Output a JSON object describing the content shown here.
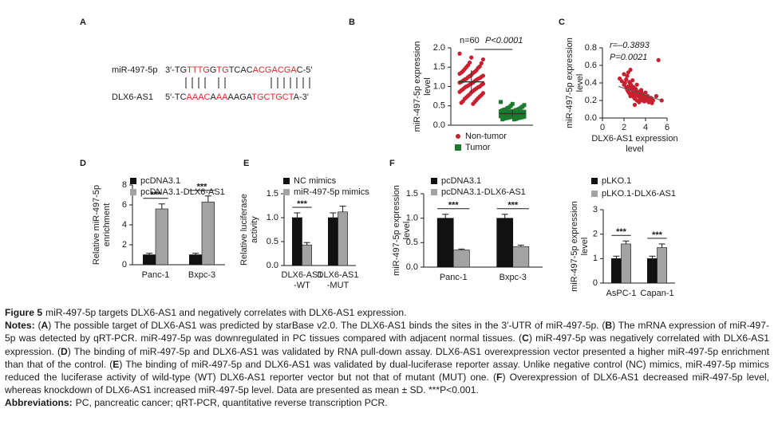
{
  "alignment": {
    "panel": "A",
    "rows": [
      {
        "label": "miR-497-5p",
        "segments": [
          {
            "text": "3′-TG",
            "color": "#222222"
          },
          {
            "text": "TTTG",
            "color": "#e0262b"
          },
          {
            "text": "G",
            "color": "#222222"
          },
          {
            "text": "TG",
            "color": "#e0262b"
          },
          {
            "text": "TCAC",
            "color": "#222222"
          },
          {
            "text": "ACGACGA",
            "color": "#e0262b"
          },
          {
            "text": "C-5′",
            "color": "#222222"
          }
        ]
      },
      {
        "label": "DLX6-AS1",
        "segments": [
          {
            "text": "5′-TC",
            "color": "#222222"
          },
          {
            "text": "AAAC",
            "color": "#e0262b"
          },
          {
            "text": "A",
            "color": "#222222"
          },
          {
            "text": "AA",
            "color": "#e0262b"
          },
          {
            "text": "AAGA",
            "color": "#222222"
          },
          {
            "text": "TGCTGCT",
            "color": "#e0262b"
          },
          {
            "text": "A-3′",
            "color": "#222222"
          }
        ]
      }
    ]
  },
  "chart_data": [
    {
      "type": "strip",
      "panel": "B",
      "ylabel": [
        "miR-497-5p expression",
        "level"
      ],
      "annotations": [
        "n=60",
        "P<0.0001"
      ],
      "ylim": [
        0,
        2
      ],
      "yticks": [
        {
          "value": 0,
          "label": "0.0"
        },
        0.5,
        {
          "value": 1,
          "label": "1.0"
        },
        1.5,
        {
          "value": 2,
          "label": "2.0"
        }
      ],
      "series": [
        {
          "name": "Non-tumor",
          "color": "#c8202e",
          "marker": "circle",
          "mean": 1.12,
          "sd": 0.3,
          "values": [
            1.85,
            1.75,
            1.7,
            1.62,
            1.6,
            1.55,
            1.52,
            1.5,
            1.48,
            1.45,
            1.42,
            1.4,
            1.38,
            1.36,
            1.35,
            1.33,
            1.3,
            1.28,
            1.27,
            1.25,
            1.24,
            1.22,
            1.2,
            1.2,
            1.18,
            1.17,
            1.15,
            1.14,
            1.12,
            1.1,
            1.1,
            1.08,
            1.07,
            1.05,
            1.04,
            1.02,
            1.0,
            1.0,
            0.98,
            0.97,
            0.95,
            0.93,
            0.92,
            0.9,
            0.88,
            0.86,
            0.85,
            0.83,
            0.8,
            0.78,
            0.76,
            0.74,
            0.72,
            0.7,
            0.68,
            0.65,
            0.62,
            0.6,
            0.58,
            0.55
          ]
        },
        {
          "name": "Tumor",
          "color": "#1a7a2e",
          "marker": "square",
          "mean": 0.3,
          "sd": 0.1,
          "values": [
            0.6,
            0.55,
            0.52,
            0.5,
            0.48,
            0.46,
            0.45,
            0.44,
            0.42,
            0.41,
            0.4,
            0.4,
            0.39,
            0.38,
            0.37,
            0.36,
            0.36,
            0.35,
            0.35,
            0.34,
            0.34,
            0.33,
            0.33,
            0.32,
            0.32,
            0.31,
            0.31,
            0.3,
            0.3,
            0.3,
            0.29,
            0.29,
            0.28,
            0.28,
            0.28,
            0.27,
            0.27,
            0.26,
            0.26,
            0.25,
            0.25,
            0.25,
            0.24,
            0.24,
            0.23,
            0.23,
            0.22,
            0.22,
            0.21,
            0.21,
            0.2,
            0.2,
            0.19,
            0.19,
            0.18,
            0.18,
            0.17,
            0.16,
            0.15,
            0.15
          ]
        }
      ]
    },
    {
      "type": "scatter",
      "panel": "C",
      "ylabel": [
        "miR-497-5p expression",
        "level"
      ],
      "xlabel": [
        "DLX6-AS1 expression",
        "level"
      ],
      "annotations": [
        "r=–0.3893",
        "P=0.0021"
      ],
      "xlim": [
        0,
        6
      ],
      "xticks": [
        0,
        2,
        4,
        6
      ],
      "ylim": [
        0,
        0.8
      ],
      "yticks": [
        {
          "value": 0,
          "label": "0.0"
        },
        0.2,
        0.4,
        0.6,
        0.8
      ],
      "color": "#c8202e",
      "x": [
        1.6,
        1.8,
        2.0,
        2.0,
        2.1,
        2.2,
        2.2,
        2.3,
        2.3,
        2.4,
        2.4,
        2.5,
        2.5,
        2.5,
        2.6,
        2.6,
        2.7,
        2.7,
        2.8,
        2.8,
        2.9,
        2.9,
        3.0,
        3.0,
        3.0,
        3.1,
        3.1,
        3.2,
        3.2,
        3.3,
        3.3,
        3.4,
        3.4,
        3.5,
        3.5,
        3.6,
        3.6,
        3.7,
        3.8,
        3.8,
        3.9,
        4.0,
        4.0,
        4.1,
        4.2,
        4.3,
        4.4,
        4.5,
        4.6,
        4.7,
        2.4,
        2.8,
        3.2,
        3.6,
        4.0,
        5.0,
        5.2,
        5.5,
        2.6,
        3.0
      ],
      "y": [
        0.45,
        0.42,
        0.5,
        0.38,
        0.4,
        0.35,
        0.44,
        0.32,
        0.48,
        0.36,
        0.3,
        0.41,
        0.28,
        0.34,
        0.39,
        0.25,
        0.33,
        0.37,
        0.27,
        0.3,
        0.35,
        0.24,
        0.31,
        0.28,
        0.22,
        0.33,
        0.26,
        0.29,
        0.2,
        0.3,
        0.25,
        0.27,
        0.18,
        0.28,
        0.22,
        0.25,
        0.3,
        0.2,
        0.23,
        0.27,
        0.19,
        0.24,
        0.2,
        0.22,
        0.25,
        0.18,
        0.21,
        0.23,
        0.17,
        0.2,
        0.52,
        0.43,
        0.38,
        0.32,
        0.29,
        0.25,
        0.66,
        0.2,
        0.55,
        0.15
      ],
      "fit": {
        "x": [
          1.5,
          5.5
        ],
        "y": [
          0.36,
          0.2
        ]
      }
    },
    {
      "type": "bar",
      "panel": "D",
      "ylabel": [
        "Relative miR-497-5p",
        "enrichment"
      ],
      "categories": [
        "Panc-1",
        "Bxpc-3"
      ],
      "significance": [
        "***",
        "***"
      ],
      "ylim": [
        0,
        8
      ],
      "yticks": [
        0,
        2,
        4,
        6,
        8
      ],
      "series": [
        {
          "name": "pcDNA3.1",
          "color": "#111111",
          "values": [
            1.0,
            1.0
          ],
          "errors": [
            0.15,
            0.15
          ]
        },
        {
          "name": "pcDNA3.1-DLX6-AS1",
          "color": "#a3a3a3",
          "values": [
            5.6,
            6.3
          ],
          "errors": [
            0.5,
            0.6
          ]
        }
      ]
    },
    {
      "type": "bar",
      "panel": "E",
      "ylabel": [
        "Relative luciferase",
        "activity"
      ],
      "categories": [
        [
          "DLX6-AS1",
          "-WT"
        ],
        [
          "DLX6-AS1",
          "-MUT"
        ]
      ],
      "significance": [
        "***",
        null
      ],
      "ylim": [
        0,
        1.5
      ],
      "yticks": [
        {
          "value": 0,
          "label": "0.0"
        },
        0.5,
        {
          "value": 1,
          "label": "1.0"
        },
        1.5
      ],
      "series": [
        {
          "name": "NC mimics",
          "color": "#111111",
          "values": [
            1.0,
            1.0
          ],
          "errors": [
            0.1,
            0.1
          ]
        },
        {
          "name": "miR-497-5p mimics",
          "color": "#a3a3a3",
          "values": [
            0.43,
            1.12
          ],
          "errors": [
            0.05,
            0.12
          ]
        }
      ]
    },
    {
      "type": "bar",
      "panel": "F",
      "ylabel": [
        "miR-497-5p expression",
        "level"
      ],
      "categories": [
        "Panc-1",
        "Bxpc-3"
      ],
      "significance": [
        "***",
        "***"
      ],
      "ylim": [
        0,
        1.5
      ],
      "yticks": [
        {
          "value": 0,
          "label": "0.0"
        },
        0.5,
        {
          "value": 1,
          "label": "1.0"
        },
        1.5
      ],
      "series": [
        {
          "name": "pcDNA3.1",
          "color": "#111111",
          "values": [
            1.0,
            1.0
          ],
          "errors": [
            0.08,
            0.08
          ]
        },
        {
          "name": "pcDNA3.1-DLX6-AS1",
          "color": "#a3a3a3",
          "values": [
            0.35,
            0.42
          ],
          "errors": [
            0.02,
            0.03
          ]
        }
      ]
    },
    {
      "type": "bar",
      "ylabel": [
        "miR-497-5p expression",
        "level"
      ],
      "categories": [
        "AsPC-1",
        "Capan-1"
      ],
      "significance": [
        "***",
        "***"
      ],
      "ylim": [
        0,
        3
      ],
      "yticks": [
        0,
        1,
        2,
        3
      ],
      "series": [
        {
          "name": "pLKO.1",
          "color": "#111111",
          "values": [
            1.0,
            1.0
          ],
          "errors": [
            0.1,
            0.1
          ]
        },
        {
          "name": "pLKO.1-DLX6-AS1",
          "color": "#a3a3a3",
          "values": [
            1.6,
            1.45
          ],
          "errors": [
            0.12,
            0.15
          ]
        }
      ]
    }
  ],
  "caption": {
    "title": "Figure 5",
    "text": "miR-497-5p targets DLX6-AS1 and negatively correlates with DLX6-AS1 expression.",
    "notes": [
      {
        "text": "Notes:",
        "bold": true
      },
      {
        "text": " (",
        "bold": false
      },
      {
        "text": "A",
        "bold": true
      },
      {
        "text": ") The possible target of DLX6-AS1 was predicted by starBase v2.0. The DLX6-AS1 binds the sites in the 3′-UTR of miR-497-5p. (",
        "bold": false
      },
      {
        "text": "B",
        "bold": true
      },
      {
        "text": ") The mRNA expression of miR-497-5p was detected by qRT-PCR. miR-497-5p was downregulated in PC tissues compared with adjacent normal tissues. (",
        "bold": false
      },
      {
        "text": "C",
        "bold": true
      },
      {
        "text": ") miR-497-5p was negatively correlated with DLX6-AS1 expression. (",
        "bold": false
      },
      {
        "text": "D",
        "bold": true
      },
      {
        "text": ") The binding of miR-497-5p and DLX6-AS1 was validated by RNA pull-down assay. DLX6-AS1 overexpression vector presented a higher miR-497-5p enrichment than that of the control. (",
        "bold": false
      },
      {
        "text": "E",
        "bold": true
      },
      {
        "text": ") The binding of miR-497-5p and DLX6-AS1 was validated by dual-luciferase reporter assay. Unlike negative control (NC) mimics, miR-497-5p mimics reduced the luciferase activity of wild-type (WT) DLX6-AS1 reporter vector but not that of mutant (MUT) one. (",
        "bold": false
      },
      {
        "text": "F",
        "bold": true
      },
      {
        "text": ") Overexpression of DLX6-AS1 decreased miR-497-5p level, whereas knockdown of DLX6-AS1 increased miR-497-5p level. Data are presented as mean ± SD. ***P<0.001.",
        "bold": false
      }
    ],
    "abbreviations": {
      "label": "Abbreviations:",
      "text": "PC, pancreatic cancer; qRT-PCR, quantitative reverse transcription PCR."
    }
  }
}
